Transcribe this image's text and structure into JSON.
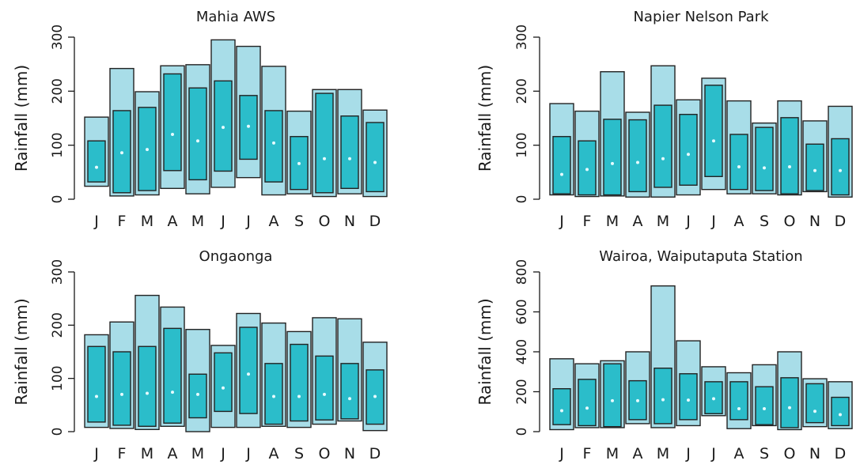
{
  "chart_data": [
    {
      "type": "box",
      "title": "Mahia AWS",
      "ylabel": "Rainfall (mm)",
      "ylim": [
        0,
        300
      ],
      "yticks": [
        "0",
        "100",
        "200",
        "300"
      ],
      "categories": [
        "J",
        "F",
        "M",
        "A",
        "M",
        "J",
        "J",
        "A",
        "S",
        "O",
        "N",
        "D"
      ],
      "outer_low": [
        24,
        6,
        8,
        20,
        10,
        22,
        40,
        8,
        10,
        5,
        10,
        5
      ],
      "inner_low": [
        32,
        12,
        16,
        53,
        36,
        52,
        74,
        32,
        18,
        12,
        20,
        14
      ],
      "median": [
        59,
        86,
        92,
        120,
        108,
        133,
        135,
        104,
        66,
        75,
        75,
        68
      ],
      "inner_high": [
        108,
        164,
        170,
        232,
        206,
        219,
        192,
        164,
        116,
        196,
        154,
        142
      ],
      "outer_high": [
        152,
        242,
        199,
        247,
        249,
        295,
        283,
        246,
        163,
        203,
        203,
        165
      ]
    },
    {
      "type": "box",
      "title": "Napier Nelson Park",
      "ylabel": "Rainfall (mm)",
      "ylim": [
        0,
        300
      ],
      "yticks": [
        "0",
        "100",
        "200",
        "300"
      ],
      "categories": [
        "J",
        "F",
        "M",
        "A",
        "M",
        "J",
        "J",
        "A",
        "S",
        "O",
        "N",
        "D"
      ],
      "outer_low": [
        8,
        5,
        6,
        4,
        4,
        8,
        18,
        10,
        10,
        8,
        14,
        4
      ],
      "inner_low": [
        10,
        8,
        8,
        14,
        22,
        26,
        42,
        18,
        16,
        10,
        16,
        8
      ],
      "median": [
        46,
        55,
        66,
        68,
        75,
        83,
        108,
        60,
        58,
        60,
        53,
        53
      ],
      "inner_high": [
        116,
        108,
        148,
        147,
        174,
        157,
        211,
        120,
        133,
        151,
        102,
        112
      ],
      "outer_high": [
        177,
        163,
        236,
        161,
        247,
        184,
        224,
        182,
        141,
        182,
        145,
        172
      ]
    },
    {
      "type": "box",
      "title": "Ongaonga",
      "ylabel": "Rainfall (mm)",
      "ylim": [
        0,
        300
      ],
      "yticks": [
        "0",
        "100",
        "200",
        "300"
      ],
      "categories": [
        "J",
        "F",
        "M",
        "A",
        "M",
        "J",
        "J",
        "A",
        "S",
        "O",
        "N",
        "D"
      ],
      "outer_low": [
        8,
        6,
        4,
        10,
        0,
        8,
        8,
        10,
        8,
        14,
        20,
        2
      ],
      "inner_low": [
        18,
        12,
        10,
        16,
        26,
        38,
        34,
        14,
        20,
        22,
        24,
        14
      ],
      "median": [
        66,
        70,
        72,
        74,
        70,
        82,
        108,
        66,
        66,
        70,
        62,
        66
      ],
      "inner_high": [
        160,
        150,
        160,
        194,
        108,
        148,
        196,
        128,
        164,
        142,
        128,
        116
      ],
      "outer_high": [
        182,
        206,
        256,
        234,
        192,
        162,
        222,
        204,
        188,
        214,
        212,
        168
      ]
    },
    {
      "type": "box",
      "title": "Wairoa, Waiputaputa Station",
      "ylabel": "Rainfall (mm)",
      "ylim": [
        0,
        800
      ],
      "yticks": [
        "0",
        "200",
        "400",
        "600",
        "800"
      ],
      "categories": [
        "J",
        "F",
        "M",
        "A",
        "M",
        "J",
        "J",
        "A",
        "S",
        "O",
        "N",
        "D"
      ],
      "outer_low": [
        10,
        20,
        20,
        40,
        20,
        30,
        80,
        15,
        30,
        10,
        25,
        15
      ],
      "inner_low": [
        35,
        30,
        25,
        60,
        40,
        60,
        90,
        60,
        35,
        20,
        45,
        30
      ],
      "median": [
        105,
        118,
        155,
        155,
        160,
        158,
        165,
        115,
        115,
        120,
        102,
        85
      ],
      "inner_high": [
        215,
        262,
        340,
        255,
        318,
        290,
        250,
        250,
        225,
        270,
        240,
        172
      ],
      "outer_high": [
        365,
        340,
        355,
        400,
        730,
        455,
        325,
        295,
        335,
        400,
        265,
        250
      ]
    }
  ],
  "colors": {
    "outer_fill": "#a8dde8",
    "inner_fill": "#2bbdca",
    "median": "#e6fbff",
    "axis": "#1a1a1a"
  }
}
